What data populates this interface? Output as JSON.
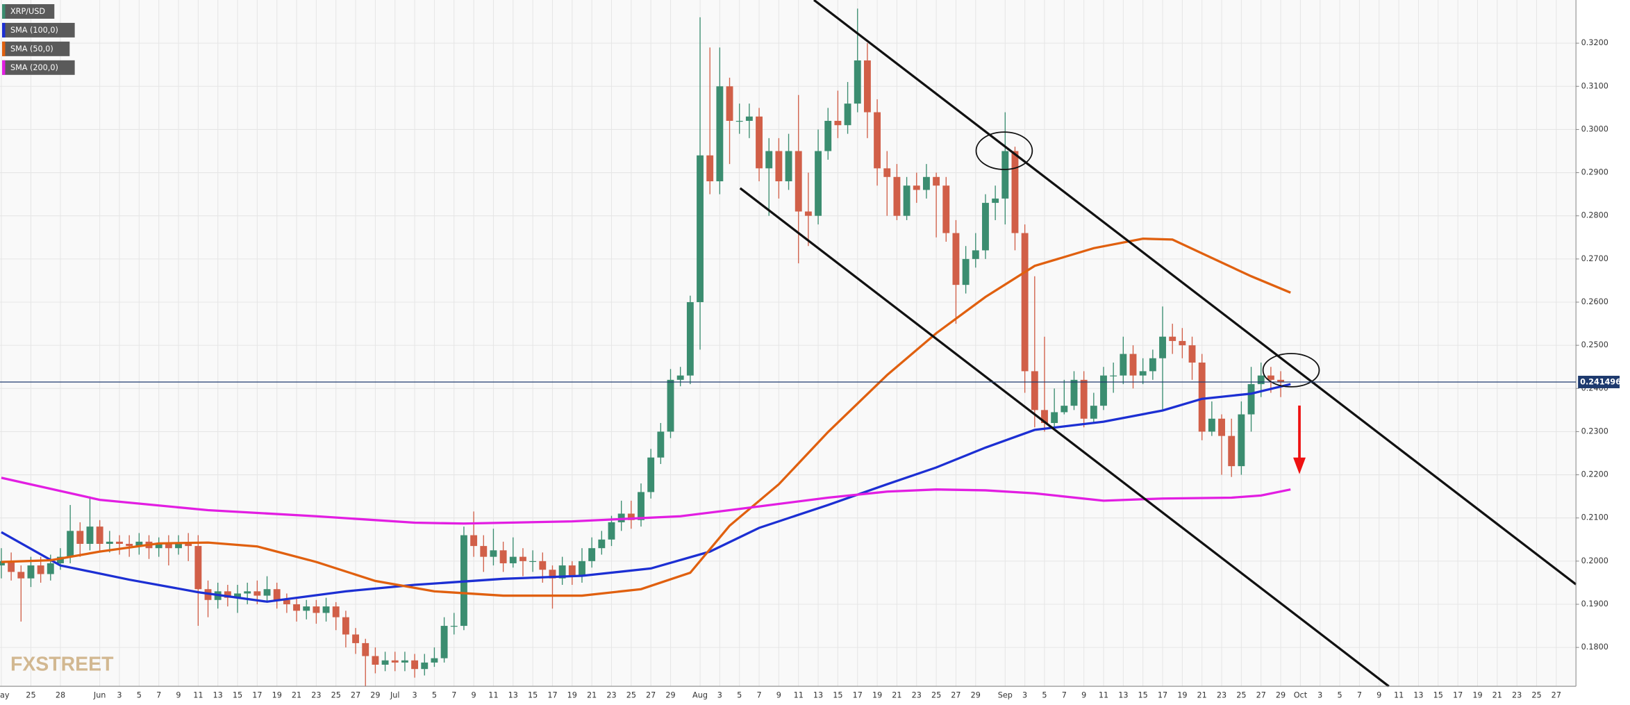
{
  "chart_data": {
    "type": "candlestick",
    "candles": {
      "name": "XRP/USD",
      "up_color": "#3b8d70",
      "down_color": "#d15f48",
      "open": [
        0.199,
        0.2,
        0.1975,
        0.196,
        0.199,
        0.197,
        0.1995,
        0.201,
        0.207,
        0.204,
        0.208,
        0.204,
        0.2045,
        0.204,
        0.2035,
        0.2045,
        0.203,
        0.204,
        0.203,
        0.204,
        0.2035,
        0.1935,
        0.191,
        0.193,
        0.1915,
        0.1925,
        0.193,
        0.192,
        0.1935,
        0.191,
        0.19,
        0.1885,
        0.1895,
        0.188,
        0.1895,
        0.187,
        0.183,
        0.181,
        0.178,
        0.176,
        0.177,
        0.1765,
        0.177,
        0.175,
        0.1765,
        0.1775,
        0.185,
        0.185,
        0.206,
        0.2035,
        0.201,
        0.2025,
        0.1995,
        0.201,
        0.2,
        0.2,
        0.198,
        0.196,
        0.199,
        0.1965,
        0.2,
        0.203,
        0.205,
        0.209,
        0.211,
        0.2095,
        0.216,
        0.224,
        0.23,
        0.242,
        0.243,
        0.26,
        0.294,
        0.288,
        0.31,
        0.302,
        0.302,
        0.303,
        0.291,
        0.295,
        0.288,
        0.295,
        0.281,
        0.28,
        0.295,
        0.302,
        0.301,
        0.306,
        0.316,
        0.304,
        0.291,
        0.289,
        0.28,
        0.287,
        0.286,
        0.289,
        0.287,
        0.276,
        0.264,
        0.27,
        0.272,
        0.283,
        0.284,
        0.295,
        0.276,
        0.244,
        0.235,
        0.232,
        0.2345,
        0.236,
        0.242,
        0.233,
        0.236,
        0.243,
        0.243,
        0.248,
        0.243,
        0.244,
        0.247,
        0.252,
        0.251,
        0.25,
        0.246,
        0.23,
        0.233,
        0.229,
        0.222,
        0.234,
        0.241,
        0.243,
        0.242
      ],
      "high": [
        0.203,
        0.202,
        0.199,
        0.201,
        0.201,
        0.2015,
        0.203,
        0.213,
        0.209,
        0.215,
        0.2095,
        0.207,
        0.206,
        0.206,
        0.2065,
        0.206,
        0.2055,
        0.206,
        0.206,
        0.2065,
        0.206,
        0.1955,
        0.195,
        0.1945,
        0.1945,
        0.195,
        0.1955,
        0.1965,
        0.195,
        0.1925,
        0.1915,
        0.191,
        0.191,
        0.1915,
        0.1905,
        0.1885,
        0.1845,
        0.182,
        0.18,
        0.179,
        0.179,
        0.179,
        0.1785,
        0.1785,
        0.18,
        0.187,
        0.188,
        0.208,
        0.2115,
        0.206,
        0.2075,
        0.2045,
        0.2055,
        0.203,
        0.2025,
        0.202,
        0.199,
        0.201,
        0.2,
        0.203,
        0.2055,
        0.207,
        0.2105,
        0.214,
        0.214,
        0.218,
        0.226,
        0.232,
        0.2445,
        0.245,
        0.2615,
        0.326,
        0.319,
        0.319,
        0.312,
        0.306,
        0.306,
        0.305,
        0.298,
        0.298,
        0.299,
        0.308,
        0.29,
        0.3,
        0.305,
        0.309,
        0.311,
        0.328,
        0.32,
        0.307,
        0.295,
        0.292,
        0.289,
        0.29,
        0.292,
        0.29,
        0.289,
        0.279,
        0.273,
        0.276,
        0.285,
        0.287,
        0.304,
        0.296,
        0.278,
        0.266,
        0.252,
        0.24,
        0.242,
        0.244,
        0.244,
        0.239,
        0.245,
        0.246,
        0.252,
        0.25,
        0.247,
        0.249,
        0.259,
        0.255,
        0.254,
        0.252,
        0.248,
        0.237,
        0.234,
        0.233,
        0.237,
        0.245,
        0.246,
        0.245,
        0.244
      ],
      "low": [
        0.196,
        0.1955,
        0.186,
        0.194,
        0.195,
        0.1955,
        0.198,
        0.1995,
        0.201,
        0.2025,
        0.202,
        0.202,
        0.2015,
        0.201,
        0.2015,
        0.2005,
        0.201,
        0.199,
        0.2015,
        0.2,
        0.185,
        0.187,
        0.189,
        0.1895,
        0.188,
        0.19,
        0.19,
        0.1905,
        0.189,
        0.188,
        0.186,
        0.1865,
        0.1855,
        0.186,
        0.184,
        0.18,
        0.1785,
        0.171,
        0.174,
        0.1745,
        0.1745,
        0.1745,
        0.173,
        0.1735,
        0.1755,
        0.1765,
        0.183,
        0.184,
        0.201,
        0.1975,
        0.199,
        0.1975,
        0.1985,
        0.1965,
        0.1975,
        0.195,
        0.189,
        0.1945,
        0.1945,
        0.195,
        0.1985,
        0.2015,
        0.2035,
        0.207,
        0.2075,
        0.208,
        0.2145,
        0.2225,
        0.2285,
        0.2405,
        0.241,
        0.249,
        0.285,
        0.285,
        0.292,
        0.299,
        0.298,
        0.288,
        0.28,
        0.284,
        0.286,
        0.269,
        0.273,
        0.278,
        0.293,
        0.298,
        0.299,
        0.304,
        0.298,
        0.287,
        0.28,
        0.279,
        0.279,
        0.283,
        0.284,
        0.275,
        0.274,
        0.255,
        0.262,
        0.268,
        0.27,
        0.279,
        0.278,
        0.272,
        0.239,
        0.231,
        0.23,
        0.231,
        0.234,
        0.235,
        0.231,
        0.232,
        0.235,
        0.239,
        0.241,
        0.24,
        0.241,
        0.242,
        0.235,
        0.248,
        0.247,
        0.242,
        0.228,
        0.229,
        0.22,
        0.2195,
        0.22,
        0.23,
        0.238,
        0.239,
        0.238
      ],
      "close": [
        0.2,
        0.1975,
        0.196,
        0.199,
        0.197,
        0.1995,
        0.201,
        0.207,
        0.204,
        0.208,
        0.204,
        0.2045,
        0.204,
        0.2035,
        0.2045,
        0.203,
        0.204,
        0.203,
        0.204,
        0.2035,
        0.1935,
        0.191,
        0.193,
        0.1915,
        0.1925,
        0.193,
        0.192,
        0.1935,
        0.191,
        0.19,
        0.1885,
        0.1895,
        0.188,
        0.1895,
        0.187,
        0.183,
        0.181,
        0.178,
        0.176,
        0.177,
        0.1765,
        0.177,
        0.175,
        0.1765,
        0.1775,
        0.185,
        0.185,
        0.206,
        0.2035,
        0.201,
        0.2025,
        0.1995,
        0.201,
        0.2,
        0.2,
        0.198,
        0.196,
        0.199,
        0.1965,
        0.2,
        0.203,
        0.205,
        0.209,
        0.211,
        0.2095,
        0.216,
        0.224,
        0.23,
        0.242,
        0.243,
        0.26,
        0.294,
        0.288,
        0.31,
        0.302,
        0.302,
        0.303,
        0.291,
        0.295,
        0.288,
        0.295,
        0.281,
        0.28,
        0.295,
        0.302,
        0.301,
        0.306,
        0.316,
        0.304,
        0.291,
        0.289,
        0.28,
        0.287,
        0.286,
        0.289,
        0.287,
        0.276,
        0.264,
        0.27,
        0.272,
        0.283,
        0.284,
        0.295,
        0.276,
        0.244,
        0.235,
        0.232,
        0.2345,
        0.236,
        0.242,
        0.233,
        0.236,
        0.243,
        0.243,
        0.248,
        0.243,
        0.244,
        0.247,
        0.252,
        0.251,
        0.25,
        0.246,
        0.23,
        0.233,
        0.229,
        0.222,
        0.234,
        0.241,
        0.243,
        0.242,
        0.2415
      ]
    },
    "series": [
      {
        "name": "SMA (100,0)",
        "color": "#1c2fd3",
        "x": [
          0,
          6,
          13,
          20,
          27,
          35,
          42,
          51,
          59,
          66,
          72,
          77,
          84,
          90,
          95,
          100,
          105,
          112,
          118,
          122,
          127,
          131
        ],
        "values": [
          0.2067,
          0.199,
          0.1957,
          0.1928,
          0.1906,
          0.193,
          0.1945,
          0.1959,
          0.1966,
          0.1983,
          0.2022,
          0.2077,
          0.213,
          0.2178,
          0.2217,
          0.2263,
          0.2304,
          0.2323,
          0.2349,
          0.2376,
          0.2388,
          0.241
        ]
      },
      {
        "name": "SMA (50,0)",
        "color": "#e0600f",
        "x": [
          0,
          5,
          10,
          16,
          21,
          26,
          32,
          38,
          44,
          51,
          59,
          65,
          70,
          74,
          79,
          84,
          90,
          95,
          100,
          105,
          111,
          116,
          119,
          122,
          127,
          131
        ],
        "values": [
          0.1998,
          0.2002,
          0.2022,
          0.2041,
          0.2043,
          0.2034,
          0.1998,
          0.1954,
          0.193,
          0.192,
          0.192,
          0.1935,
          0.1973,
          0.2082,
          0.2178,
          0.2299,
          0.2431,
          0.2528,
          0.2612,
          0.2684,
          0.2725,
          0.2747,
          0.2745,
          0.2713,
          0.266,
          0.2622
        ]
      },
      {
        "name": "SMA (200,0)",
        "color": "#e21ee2",
        "x": [
          0,
          10,
          21,
          32,
          42,
          47,
          58,
          69,
          74,
          84,
          90,
          95,
          100,
          105,
          112,
          118,
          125,
          128,
          131
        ],
        "values": [
          0.2193,
          0.2142,
          0.2118,
          0.2104,
          0.2089,
          0.2087,
          0.2092,
          0.2104,
          0.2118,
          0.2147,
          0.2161,
          0.2166,
          0.2164,
          0.2157,
          0.214,
          0.2145,
          0.2147,
          0.2152,
          0.2166
        ]
      }
    ],
    "xlim": [
      0,
      160
    ],
    "xticks": [
      {
        "value": 0,
        "label": "May"
      },
      {
        "value": 3,
        "label": "25"
      },
      {
        "value": 6,
        "label": "28"
      },
      {
        "value": 10,
        "label": "Jun"
      },
      {
        "value": 12,
        "label": "3"
      },
      {
        "value": 14,
        "label": "5"
      },
      {
        "value": 16,
        "label": "7"
      },
      {
        "value": 18,
        "label": "9"
      },
      {
        "value": 20,
        "label": "11"
      },
      {
        "value": 22,
        "label": "13"
      },
      {
        "value": 24,
        "label": "15"
      },
      {
        "value": 26,
        "label": "17"
      },
      {
        "value": 28,
        "label": "19"
      },
      {
        "value": 30,
        "label": "21"
      },
      {
        "value": 32,
        "label": "23"
      },
      {
        "value": 34,
        "label": "25"
      },
      {
        "value": 36,
        "label": "27"
      },
      {
        "value": 38,
        "label": "29"
      },
      {
        "value": 40,
        "label": "Jul"
      },
      {
        "value": 42,
        "label": "3"
      },
      {
        "value": 44,
        "label": "5"
      },
      {
        "value": 46,
        "label": "7"
      },
      {
        "value": 48,
        "label": "9"
      },
      {
        "value": 50,
        "label": "11"
      },
      {
        "value": 52,
        "label": "13"
      },
      {
        "value": 54,
        "label": "15"
      },
      {
        "value": 56,
        "label": "17"
      },
      {
        "value": 58,
        "label": "19"
      },
      {
        "value": 60,
        "label": "21"
      },
      {
        "value": 62,
        "label": "23"
      },
      {
        "value": 64,
        "label": "25"
      },
      {
        "value": 66,
        "label": "27"
      },
      {
        "value": 68,
        "label": "29"
      },
      {
        "value": 71,
        "label": "Aug"
      },
      {
        "value": 73,
        "label": "3"
      },
      {
        "value": 75,
        "label": "5"
      },
      {
        "value": 77,
        "label": "7"
      },
      {
        "value": 79,
        "label": "9"
      },
      {
        "value": 81,
        "label": "11"
      },
      {
        "value": 83,
        "label": "13"
      },
      {
        "value": 85,
        "label": "15"
      },
      {
        "value": 87,
        "label": "17"
      },
      {
        "value": 89,
        "label": "19"
      },
      {
        "value": 91,
        "label": "21"
      },
      {
        "value": 93,
        "label": "23"
      },
      {
        "value": 95,
        "label": "25"
      },
      {
        "value": 97,
        "label": "27"
      },
      {
        "value": 99,
        "label": "29"
      },
      {
        "value": 102,
        "label": "Sep"
      },
      {
        "value": 104,
        "label": "3"
      },
      {
        "value": 106,
        "label": "5"
      },
      {
        "value": 108,
        "label": "7"
      },
      {
        "value": 110,
        "label": "9"
      },
      {
        "value": 112,
        "label": "11"
      },
      {
        "value": 114,
        "label": "13"
      },
      {
        "value": 116,
        "label": "15"
      },
      {
        "value": 118,
        "label": "17"
      },
      {
        "value": 120,
        "label": "19"
      },
      {
        "value": 122,
        "label": "21"
      },
      {
        "value": 124,
        "label": "23"
      },
      {
        "value": 126,
        "label": "25"
      },
      {
        "value": 128,
        "label": "27"
      },
      {
        "value": 130,
        "label": "29"
      },
      {
        "value": 132,
        "label": "Oct"
      },
      {
        "value": 134,
        "label": "3"
      },
      {
        "value": 136,
        "label": "5"
      },
      {
        "value": 138,
        "label": "7"
      },
      {
        "value": 140,
        "label": "9"
      },
      {
        "value": 142,
        "label": "11"
      },
      {
        "value": 144,
        "label": "13"
      },
      {
        "value": 146,
        "label": "15"
      },
      {
        "value": 148,
        "label": "17"
      },
      {
        "value": 150,
        "label": "19"
      },
      {
        "value": 152,
        "label": "21"
      },
      {
        "value": 154,
        "label": "23"
      },
      {
        "value": 156,
        "label": "25"
      },
      {
        "value": 158,
        "label": "27"
      }
    ],
    "ylim": [
      0.171,
      0.33
    ],
    "yticks": [
      {
        "value": 0.18,
        "label": "0.1800"
      },
      {
        "value": 0.19,
        "label": "0.1900"
      },
      {
        "value": 0.2,
        "label": "0.2000"
      },
      {
        "value": 0.21,
        "label": "0.2100"
      },
      {
        "value": 0.22,
        "label": "0.2200"
      },
      {
        "value": 0.23,
        "label": "0.2300"
      },
      {
        "value": 0.24,
        "label": "0.2400"
      },
      {
        "value": 0.25,
        "label": "0.2500"
      },
      {
        "value": 0.26,
        "label": "0.2600"
      },
      {
        "value": 0.27,
        "label": "0.2700"
      },
      {
        "value": 0.28,
        "label": "0.2800"
      },
      {
        "value": 0.29,
        "label": "0.2900"
      },
      {
        "value": 0.3,
        "label": "0.3000"
      },
      {
        "value": 0.31,
        "label": "0.3100"
      },
      {
        "value": 0.32,
        "label": "0.3200"
      }
    ],
    "grid": true,
    "last_price": 0.241496,
    "watermark": "FXSTREET"
  }
}
